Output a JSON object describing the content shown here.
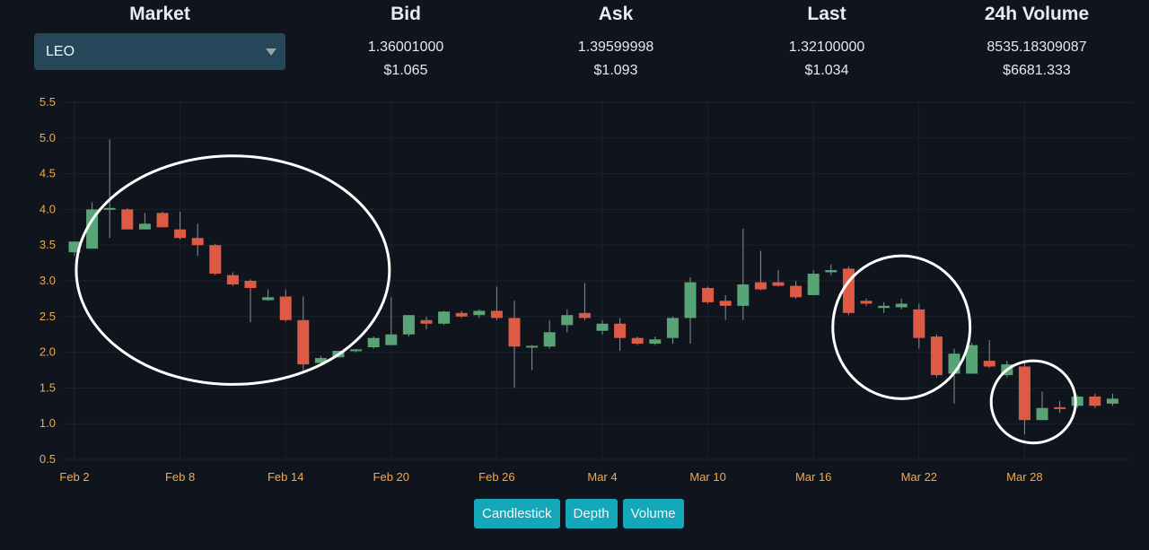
{
  "header": {
    "market": {
      "title": "Market",
      "selected": "LEO"
    },
    "bid": {
      "title": "Bid",
      "value": "1.36001000",
      "usd": "$1.065"
    },
    "ask": {
      "title": "Ask",
      "value": "1.39599998",
      "usd": "$1.093"
    },
    "last": {
      "title": "Last",
      "value": "1.32100000",
      "usd": "$1.034"
    },
    "volume": {
      "title": "24h Volume",
      "value": "8535.18309087",
      "usd": "$6681.333"
    }
  },
  "buttons": {
    "candlestick": "Candlestick",
    "depth": "Depth",
    "volume": "Volume"
  },
  "colors": {
    "up": "#58a476",
    "down": "#df5a45",
    "wick": "#8b9097",
    "axis_label": "#f3a94a",
    "grid": "#1c222b",
    "annotation": "#ffffff"
  },
  "chart_data": {
    "type": "candlestick",
    "ylim": [
      0.5,
      5.5
    ],
    "y_ticks": [
      "0.5",
      "1.0",
      "1.5",
      "2.0",
      "2.5",
      "3.0",
      "3.5",
      "4.0",
      "4.5",
      "5.0",
      "5.5"
    ],
    "x_ticks": [
      "Feb 2",
      "Feb 8",
      "Feb 14",
      "Feb 20",
      "Feb 26",
      "Mar 4",
      "Mar 10",
      "Mar 16",
      "Mar 22",
      "Mar 28"
    ],
    "grid": true,
    "candles": [
      {
        "d": "Feb 2",
        "o": 3.4,
        "h": 3.55,
        "l": 3.35,
        "c": 3.55
      },
      {
        "d": "Feb 3",
        "o": 3.45,
        "h": 4.1,
        "l": 3.45,
        "c": 4.0
      },
      {
        "d": "Feb 4",
        "o": 4.0,
        "h": 4.98,
        "l": 3.6,
        "c": 4.02
      },
      {
        "d": "Feb 5",
        "o": 4.0,
        "h": 4.02,
        "l": 3.72,
        "c": 3.72
      },
      {
        "d": "Feb 6",
        "o": 3.72,
        "h": 3.95,
        "l": 3.72,
        "c": 3.8
      },
      {
        "d": "Feb 7",
        "o": 3.95,
        "h": 3.97,
        "l": 3.75,
        "c": 3.75
      },
      {
        "d": "Feb 8",
        "o": 3.72,
        "h": 3.97,
        "l": 3.58,
        "c": 3.6
      },
      {
        "d": "Feb 9",
        "o": 3.6,
        "h": 3.8,
        "l": 3.35,
        "c": 3.5
      },
      {
        "d": "Feb 10",
        "o": 3.5,
        "h": 3.52,
        "l": 3.08,
        "c": 3.1
      },
      {
        "d": "Feb 11",
        "o": 3.08,
        "h": 3.12,
        "l": 2.93,
        "c": 2.95
      },
      {
        "d": "Feb 12",
        "o": 3.0,
        "h": 3.02,
        "l": 2.42,
        "c": 2.9
      },
      {
        "d": "Feb 13",
        "o": 2.73,
        "h": 2.88,
        "l": 2.72,
        "c": 2.77
      },
      {
        "d": "Feb 14",
        "o": 2.78,
        "h": 2.88,
        "l": 2.43,
        "c": 2.45
      },
      {
        "d": "Feb 15",
        "o": 2.45,
        "h": 2.78,
        "l": 1.75,
        "c": 1.83
      },
      {
        "d": "Feb 16",
        "o": 1.85,
        "h": 1.95,
        "l": 1.82,
        "c": 1.92
      },
      {
        "d": "Feb 17",
        "o": 1.93,
        "h": 2.02,
        "l": 1.92,
        "c": 2.02
      },
      {
        "d": "Feb 18",
        "o": 2.02,
        "h": 2.05,
        "l": 2.0,
        "c": 2.04
      },
      {
        "d": "Feb 19",
        "o": 2.07,
        "h": 2.22,
        "l": 2.05,
        "c": 2.2
      },
      {
        "d": "Feb 20",
        "o": 2.1,
        "h": 2.77,
        "l": 2.1,
        "c": 2.25
      },
      {
        "d": "Feb 21",
        "o": 2.25,
        "h": 2.52,
        "l": 2.22,
        "c": 2.52
      },
      {
        "d": "Feb 22",
        "o": 2.45,
        "h": 2.5,
        "l": 2.32,
        "c": 2.4
      },
      {
        "d": "Feb 23",
        "o": 2.4,
        "h": 2.58,
        "l": 2.38,
        "c": 2.57
      },
      {
        "d": "Feb 24",
        "o": 2.55,
        "h": 2.58,
        "l": 2.48,
        "c": 2.5
      },
      {
        "d": "Feb 25",
        "o": 2.52,
        "h": 2.6,
        "l": 2.48,
        "c": 2.58
      },
      {
        "d": "Feb 26",
        "o": 2.58,
        "h": 2.92,
        "l": 2.45,
        "c": 2.48
      },
      {
        "d": "Feb 27",
        "o": 2.48,
        "h": 2.72,
        "l": 1.5,
        "c": 2.08
      },
      {
        "d": "Feb 28",
        "o": 2.08,
        "h": 2.1,
        "l": 1.75,
        "c": 2.09
      },
      {
        "d": "Mar 1",
        "o": 2.08,
        "h": 2.45,
        "l": 2.05,
        "c": 2.28
      },
      {
        "d": "Mar 2",
        "o": 2.38,
        "h": 2.6,
        "l": 2.28,
        "c": 2.52
      },
      {
        "d": "Mar 3",
        "o": 2.55,
        "h": 2.97,
        "l": 2.45,
        "c": 2.48
      },
      {
        "d": "Mar 4",
        "o": 2.3,
        "h": 2.45,
        "l": 2.25,
        "c": 2.4
      },
      {
        "d": "Mar 5",
        "o": 2.4,
        "h": 2.48,
        "l": 2.02,
        "c": 2.2
      },
      {
        "d": "Mar 6",
        "o": 2.2,
        "h": 2.22,
        "l": 2.1,
        "c": 2.12
      },
      {
        "d": "Mar 7",
        "o": 2.12,
        "h": 2.22,
        "l": 2.1,
        "c": 2.18
      },
      {
        "d": "Mar 8",
        "o": 2.2,
        "h": 2.5,
        "l": 2.12,
        "c": 2.48
      },
      {
        "d": "Mar 9",
        "o": 2.48,
        "h": 3.05,
        "l": 2.12,
        "c": 2.98
      },
      {
        "d": "Mar 10",
        "o": 2.9,
        "h": 2.92,
        "l": 2.68,
        "c": 2.7
      },
      {
        "d": "Mar 11",
        "o": 2.72,
        "h": 2.8,
        "l": 2.45,
        "c": 2.65
      },
      {
        "d": "Mar 12",
        "o": 2.65,
        "h": 3.73,
        "l": 2.45,
        "c": 2.95
      },
      {
        "d": "Mar 13",
        "o": 2.98,
        "h": 3.42,
        "l": 2.87,
        "c": 2.88
      },
      {
        "d": "Mar 14",
        "o": 2.98,
        "h": 3.15,
        "l": 2.92,
        "c": 2.93
      },
      {
        "d": "Mar 15",
        "o": 2.93,
        "h": 3.0,
        "l": 2.75,
        "c": 2.77
      },
      {
        "d": "Mar 16",
        "o": 2.8,
        "h": 3.15,
        "l": 2.8,
        "c": 3.1
      },
      {
        "d": "Mar 17",
        "o": 3.12,
        "h": 3.23,
        "l": 3.08,
        "c": 3.15
      },
      {
        "d": "Mar 18",
        "o": 3.17,
        "h": 3.2,
        "l": 2.52,
        "c": 2.55
      },
      {
        "d": "Mar 19",
        "o": 2.72,
        "h": 2.75,
        "l": 2.65,
        "c": 2.68
      },
      {
        "d": "Mar 20",
        "o": 2.62,
        "h": 2.7,
        "l": 2.55,
        "c": 2.65
      },
      {
        "d": "Mar 21",
        "o": 2.63,
        "h": 2.75,
        "l": 2.6,
        "c": 2.68
      },
      {
        "d": "Mar 22",
        "o": 2.6,
        "h": 2.68,
        "l": 2.05,
        "c": 2.2
      },
      {
        "d": "Mar 23",
        "o": 2.22,
        "h": 2.25,
        "l": 1.65,
        "c": 1.68
      },
      {
        "d": "Mar 24",
        "o": 1.7,
        "h": 2.05,
        "l": 1.28,
        "c": 1.98
      },
      {
        "d": "Mar 25",
        "o": 1.7,
        "h": 2.13,
        "l": 1.7,
        "c": 2.1
      },
      {
        "d": "Mar 26",
        "o": 1.88,
        "h": 2.17,
        "l": 1.78,
        "c": 1.8
      },
      {
        "d": "Mar 27",
        "o": 1.68,
        "h": 1.88,
        "l": 1.65,
        "c": 1.83
      },
      {
        "d": "Mar 28",
        "o": 1.8,
        "h": 1.85,
        "l": 0.85,
        "c": 1.05
      },
      {
        "d": "Mar 29",
        "o": 1.05,
        "h": 1.45,
        "l": 1.05,
        "c": 1.22
      },
      {
        "d": "Mar 30",
        "o": 1.23,
        "h": 1.32,
        "l": 1.15,
        "c": 1.22
      },
      {
        "d": "Mar 31",
        "o": 1.25,
        "h": 1.4,
        "l": 1.22,
        "c": 1.38
      },
      {
        "d": "Apr 1",
        "o": 1.38,
        "h": 1.42,
        "l": 1.22,
        "c": 1.25
      },
      {
        "d": "Apr 2",
        "o": 1.28,
        "h": 1.42,
        "l": 1.25,
        "c": 1.35
      }
    ],
    "annotations": [
      {
        "shape": "ellipse",
        "from": "Feb 3",
        "to": "Feb 19",
        "y_range": [
          1.55,
          4.75
        ]
      },
      {
        "shape": "ellipse",
        "from": "Mar 18",
        "to": "Mar 24",
        "y_range": [
          1.35,
          3.35
        ]
      },
      {
        "shape": "ellipse",
        "from": "Mar 27",
        "to": "Mar 30",
        "y_range": [
          0.73,
          1.88
        ]
      }
    ]
  }
}
